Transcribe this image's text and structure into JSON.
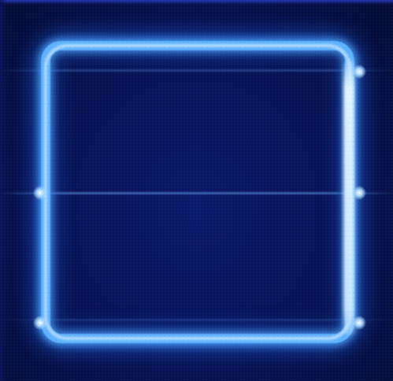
{
  "image": {
    "subject": "",
    "colors": {
      "background": "#061140",
      "glow": "#5fb2ff",
      "highlight": "#eaf6ff"
    }
  }
}
